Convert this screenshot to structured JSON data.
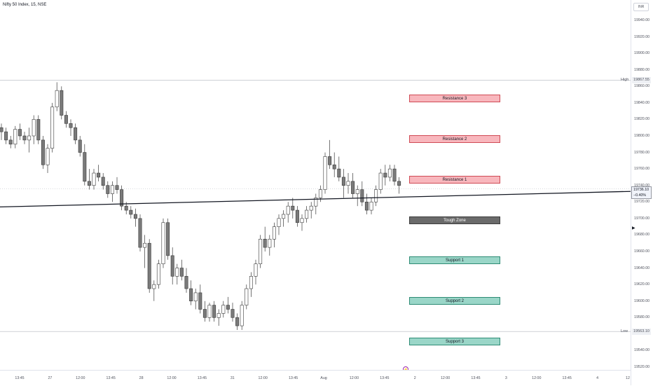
{
  "header": {
    "symbol": "Nifty 50 Index, 15, NSE"
  },
  "currency": "INR",
  "price_axis": {
    "ticks": [
      19940,
      19920,
      19900,
      19880,
      19860,
      19840,
      19820,
      19800,
      19780,
      19760,
      19740,
      19720,
      19700,
      19680,
      19660,
      19640,
      19620,
      19600,
      19580,
      19540,
      19520
    ],
    "tick_labels": [
      "19940.00",
      "19920.00",
      "19900.00",
      "19880.00",
      "19860.00",
      "19840.00",
      "19820.00",
      "19800.00",
      "19780.00",
      "19760.00",
      "19740.00",
      "19720.00",
      "19700.00",
      "19680.00",
      "19660.00",
      "19640.00",
      "19620.00",
      "19600.00",
      "19580.00",
      "19540.00",
      "19520.00"
    ]
  },
  "high": {
    "label": "High",
    "value": "19867.55",
    "price": 19867.55
  },
  "low": {
    "label": "Low",
    "value": "19563.10",
    "price": 19563.1
  },
  "last_price": {
    "value": "19736.10",
    "change": "−0.40%",
    "price": 19736.1
  },
  "zones": [
    {
      "label": "Resistance 3",
      "kind": "res",
      "price": 19845
    },
    {
      "label": "Resistance 2",
      "kind": "res",
      "price": 19796
    },
    {
      "label": "Resistance 1",
      "kind": "res",
      "price": 19747
    },
    {
      "label": "Tough Zone",
      "kind": "tough",
      "price": 19698
    },
    {
      "label": "Support 1",
      "kind": "sup",
      "price": 19649
    },
    {
      "label": "Support 2",
      "kind": "sup",
      "price": 19600
    },
    {
      "label": "Support 3",
      "kind": "sup",
      "price": 19551
    }
  ],
  "time_axis": {
    "labels": [
      "13:45",
      "27",
      "12:00",
      "13:45",
      "28",
      "12:00",
      "13:45",
      "31",
      "12:00",
      "13:45",
      "Aug",
      "12:00",
      "13:45",
      "2",
      "12:00",
      "13:45",
      "3",
      "12:00",
      "13:45",
      "4",
      "12"
    ]
  },
  "event_icon": "lightning-icon",
  "colors": {
    "up_candle": "#ffffff",
    "down_candle": "#7a7a7a",
    "candle_outline": "#3a3a3a",
    "trendline": "#131722"
  },
  "chart_data": {
    "type": "candlestick",
    "title": "",
    "ylim": [
      19510,
      19950
    ],
    "trendline": {
      "from": [
        0,
        19714
      ],
      "to": [
        210,
        19743
      ]
    },
    "candles": [
      [
        19810,
        19815,
        19795,
        19805
      ],
      [
        19805,
        19810,
        19790,
        19795
      ],
      [
        19795,
        19800,
        19785,
        19790
      ],
      [
        19790,
        19812,
        19785,
        19808
      ],
      [
        19808,
        19815,
        19795,
        19800
      ],
      [
        19800,
        19805,
        19790,
        19795
      ],
      [
        19795,
        19810,
        19780,
        19800
      ],
      [
        19800,
        19825,
        19790,
        19820
      ],
      [
        19820,
        19825,
        19790,
        19795
      ],
      [
        19795,
        19800,
        19760,
        19765
      ],
      [
        19765,
        19790,
        19755,
        19785
      ],
      [
        19785,
        19840,
        19780,
        19835
      ],
      [
        19835,
        19865,
        19830,
        19855
      ],
      [
        19855,
        19860,
        19820,
        19825
      ],
      [
        19825,
        19830,
        19810,
        19815
      ],
      [
        19815,
        19820,
        19800,
        19810
      ],
      [
        19810,
        19815,
        19790,
        19795
      ],
      [
        19795,
        19800,
        19775,
        19780
      ],
      [
        19780,
        19790,
        19740,
        19745
      ],
      [
        19745,
        19760,
        19735,
        19740
      ],
      [
        19740,
        19760,
        19735,
        19755
      ],
      [
        19755,
        19765,
        19745,
        19750
      ],
      [
        19750,
        19755,
        19735,
        19740
      ],
      [
        19740,
        19745,
        19725,
        19730
      ],
      [
        19730,
        19745,
        19720,
        19740
      ],
      [
        19740,
        19750,
        19730,
        19735
      ],
      [
        19735,
        19740,
        19710,
        19715
      ],
      [
        19715,
        19720,
        19705,
        19710
      ],
      [
        19710,
        19715,
        19700,
        19705
      ],
      [
        19705,
        19712,
        19690,
        19700
      ],
      [
        19700,
        19705,
        19660,
        19665
      ],
      [
        19665,
        19680,
        19640,
        19670
      ],
      [
        19670,
        19675,
        19610,
        19615
      ],
      [
        19615,
        19625,
        19600,
        19620
      ],
      [
        19620,
        19650,
        19615,
        19645
      ],
      [
        19645,
        19700,
        19640,
        19695
      ],
      [
        19695,
        19700,
        19650,
        19655
      ],
      [
        19655,
        19665,
        19620,
        19630
      ],
      [
        19630,
        19645,
        19620,
        19640
      ],
      [
        19640,
        19650,
        19625,
        19630
      ],
      [
        19630,
        19640,
        19610,
        19615
      ],
      [
        19615,
        19625,
        19595,
        19600
      ],
      [
        19600,
        19615,
        19590,
        19610
      ],
      [
        19610,
        19620,
        19585,
        19590
      ],
      [
        19590,
        19600,
        19575,
        19580
      ],
      [
        19580,
        19598,
        19575,
        19595
      ],
      [
        19595,
        19600,
        19575,
        19580
      ],
      [
        19580,
        19590,
        19570,
        19585
      ],
      [
        19585,
        19600,
        19580,
        19595
      ],
      [
        19595,
        19605,
        19585,
        19590
      ],
      [
        19590,
        19598,
        19575,
        19580
      ],
      [
        19580,
        19585,
        19565,
        19570
      ],
      [
        19570,
        19600,
        19565,
        19595
      ],
      [
        19595,
        19620,
        19590,
        19615
      ],
      [
        19615,
        19635,
        19605,
        19630
      ],
      [
        19630,
        19650,
        19620,
        19645
      ],
      [
        19645,
        19680,
        19640,
        19675
      ],
      [
        19675,
        19690,
        19660,
        19665
      ],
      [
        19665,
        19680,
        19655,
        19675
      ],
      [
        19675,
        19695,
        19665,
        19690
      ],
      [
        19690,
        19705,
        19680,
        19700
      ],
      [
        19700,
        19710,
        19690,
        19705
      ],
      [
        19705,
        19720,
        19695,
        19715
      ],
      [
        19715,
        19725,
        19700,
        19710
      ],
      [
        19710,
        19715,
        19690,
        19695
      ],
      [
        19695,
        19705,
        19685,
        19700
      ],
      [
        19700,
        19715,
        19695,
        19710
      ],
      [
        19710,
        19720,
        19700,
        19715
      ],
      [
        19715,
        19730,
        19705,
        19725
      ],
      [
        19725,
        19740,
        19720,
        19735
      ],
      [
        19735,
        19780,
        19730,
        19775
      ],
      [
        19775,
        19795,
        19760,
        19765
      ],
      [
        19765,
        19780,
        19750,
        19760
      ],
      [
        19760,
        19775,
        19745,
        19750
      ],
      [
        19750,
        19760,
        19725,
        19740
      ],
      [
        19740,
        19755,
        19730,
        19745
      ],
      [
        19745,
        19755,
        19725,
        19730
      ],
      [
        19730,
        19740,
        19715,
        19735
      ],
      [
        19735,
        19745,
        19715,
        19720
      ],
      [
        19720,
        19730,
        19705,
        19710
      ],
      [
        19710,
        19725,
        19705,
        19720
      ],
      [
        19720,
        19740,
        19715,
        19735
      ],
      [
        19735,
        19760,
        19730,
        19755
      ],
      [
        19755,
        19765,
        19740,
        19750
      ],
      [
        19750,
        19765,
        19745,
        19760
      ],
      [
        19760,
        19765,
        19740,
        19745
      ],
      [
        19745,
        19750,
        19730,
        19740
      ]
    ]
  }
}
